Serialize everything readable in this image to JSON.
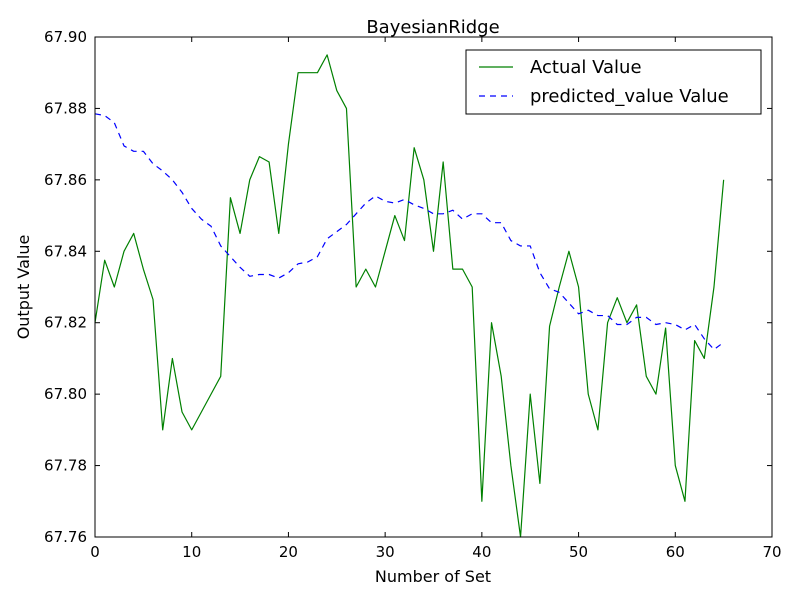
{
  "chart_data": {
    "type": "line",
    "title": "BayesianRidge",
    "xlabel": "Number of Set",
    "ylabel": "Output Value",
    "xlim": [
      0,
      70
    ],
    "ylim": [
      67.76,
      67.9
    ],
    "xticks": [
      0,
      10,
      20,
      30,
      40,
      50,
      60,
      70
    ],
    "yticks": [
      67.76,
      67.78,
      67.8,
      67.82,
      67.84,
      67.86,
      67.88,
      67.9
    ],
    "ytick_labels": [
      "67.76",
      "67.78",
      "67.80",
      "67.82",
      "67.84",
      "67.86",
      "67.88",
      "67.90"
    ],
    "grid": false,
    "legend": "top-right",
    "series": [
      {
        "name": "Actual Value",
        "color": "#008000",
        "style": "solid",
        "x": [
          0,
          1,
          2,
          3,
          4,
          5,
          6,
          7,
          8,
          9,
          10,
          11,
          12,
          13,
          14,
          15,
          16,
          17,
          18,
          19,
          20,
          21,
          22,
          23,
          24,
          25,
          26,
          27,
          28,
          29,
          30,
          31,
          32,
          33,
          34,
          35,
          36,
          37,
          38,
          39,
          40,
          41,
          42,
          43,
          44,
          45,
          46,
          47,
          48,
          49,
          50,
          51,
          52,
          53,
          54,
          55,
          56,
          57,
          58,
          59,
          60,
          61,
          62,
          63,
          64,
          65
        ],
        "values": [
          67.82,
          67.8375,
          67.83,
          67.84,
          67.845,
          67.835,
          67.8265,
          67.79,
          67.81,
          67.795,
          67.79,
          67.795,
          67.8,
          67.805,
          67.855,
          67.845,
          67.86,
          67.8665,
          67.865,
          67.845,
          67.87,
          67.89,
          67.89,
          67.89,
          67.895,
          67.885,
          67.88,
          67.83,
          67.835,
          67.83,
          67.84,
          67.85,
          67.843,
          67.869,
          67.86,
          67.84,
          67.865,
          67.835,
          67.835,
          67.83,
          67.77,
          67.82,
          67.805,
          67.78,
          67.76,
          67.8,
          67.775,
          67.819,
          67.83,
          67.84,
          67.83,
          67.8,
          67.79,
          67.82,
          67.827,
          67.82,
          67.825,
          67.805,
          67.8,
          67.8185,
          67.78,
          67.77,
          67.815,
          67.81,
          67.83,
          67.86
        ]
      },
      {
        "name": "predicted_value Value",
        "color": "#0000ff",
        "style": "dashed",
        "x": [
          0,
          1,
          2,
          3,
          4,
          5,
          6,
          7,
          8,
          9,
          10,
          11,
          12,
          13,
          14,
          15,
          16,
          17,
          18,
          19,
          20,
          21,
          22,
          23,
          24,
          25,
          26,
          27,
          28,
          29,
          30,
          31,
          32,
          33,
          34,
          35,
          36,
          37,
          38,
          39,
          40,
          41,
          42,
          43,
          44,
          45,
          46,
          47,
          48,
          49,
          50,
          51,
          52,
          53,
          54,
          55,
          56,
          57,
          58,
          59,
          60,
          61,
          62,
          63,
          64,
          65
        ],
        "values": [
          67.8785,
          67.878,
          67.876,
          67.8695,
          67.868,
          67.868,
          67.8645,
          67.8625,
          67.86,
          67.8565,
          67.852,
          67.849,
          67.847,
          67.8415,
          67.8385,
          67.8355,
          67.833,
          67.8335,
          67.8335,
          67.8325,
          67.834,
          67.8365,
          67.837,
          67.8385,
          67.8435,
          67.8455,
          67.8475,
          67.8505,
          67.8535,
          67.8555,
          67.854,
          67.8535,
          67.8545,
          67.853,
          67.852,
          67.8505,
          67.8505,
          67.8515,
          67.849,
          67.8505,
          67.8505,
          67.848,
          67.848,
          67.843,
          67.8415,
          67.8415,
          67.834,
          67.8295,
          67.8285,
          67.8255,
          67.8225,
          67.8235,
          67.822,
          67.822,
          67.8195,
          67.8195,
          67.8215,
          67.8215,
          67.8195,
          67.82,
          67.8195,
          67.818,
          67.8195,
          67.8155,
          67.8125,
          67.8145
        ]
      }
    ]
  }
}
